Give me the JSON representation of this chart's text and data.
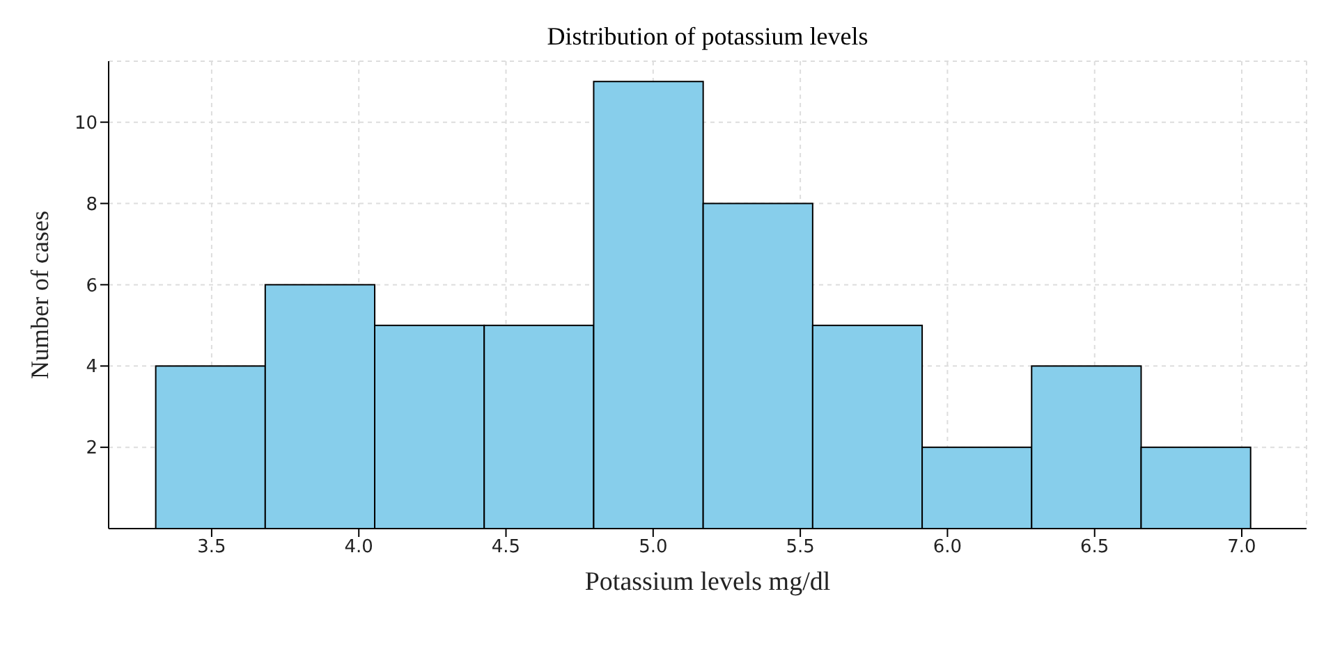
{
  "chart_data": {
    "type": "histogram",
    "title": "Distribution of potassium levels",
    "xlabel": "Potassium levels mg/dl",
    "ylabel": "Number of cases",
    "bins": [
      3.31,
      3.682,
      4.054,
      4.426,
      4.798,
      5.17,
      5.542,
      5.914,
      6.286,
      6.658,
      7.03
    ],
    "values": [
      4,
      6,
      5,
      5,
      11,
      8,
      5,
      2,
      4,
      2
    ],
    "color": "#87ceeb",
    "xlim": [
      3.15,
      7.22
    ],
    "xticks": [
      3.5,
      {
        "value": 4,
        "label": "4.0"
      },
      4.5,
      {
        "value": 5,
        "label": "5.0"
      },
      5.5,
      {
        "value": 6,
        "label": "6.0"
      },
      6.5,
      {
        "value": 7,
        "label": "7.0"
      }
    ],
    "ylim": [
      0,
      11.5
    ],
    "yticks": [
      2,
      4,
      6,
      8,
      10
    ],
    "grid": true
  }
}
